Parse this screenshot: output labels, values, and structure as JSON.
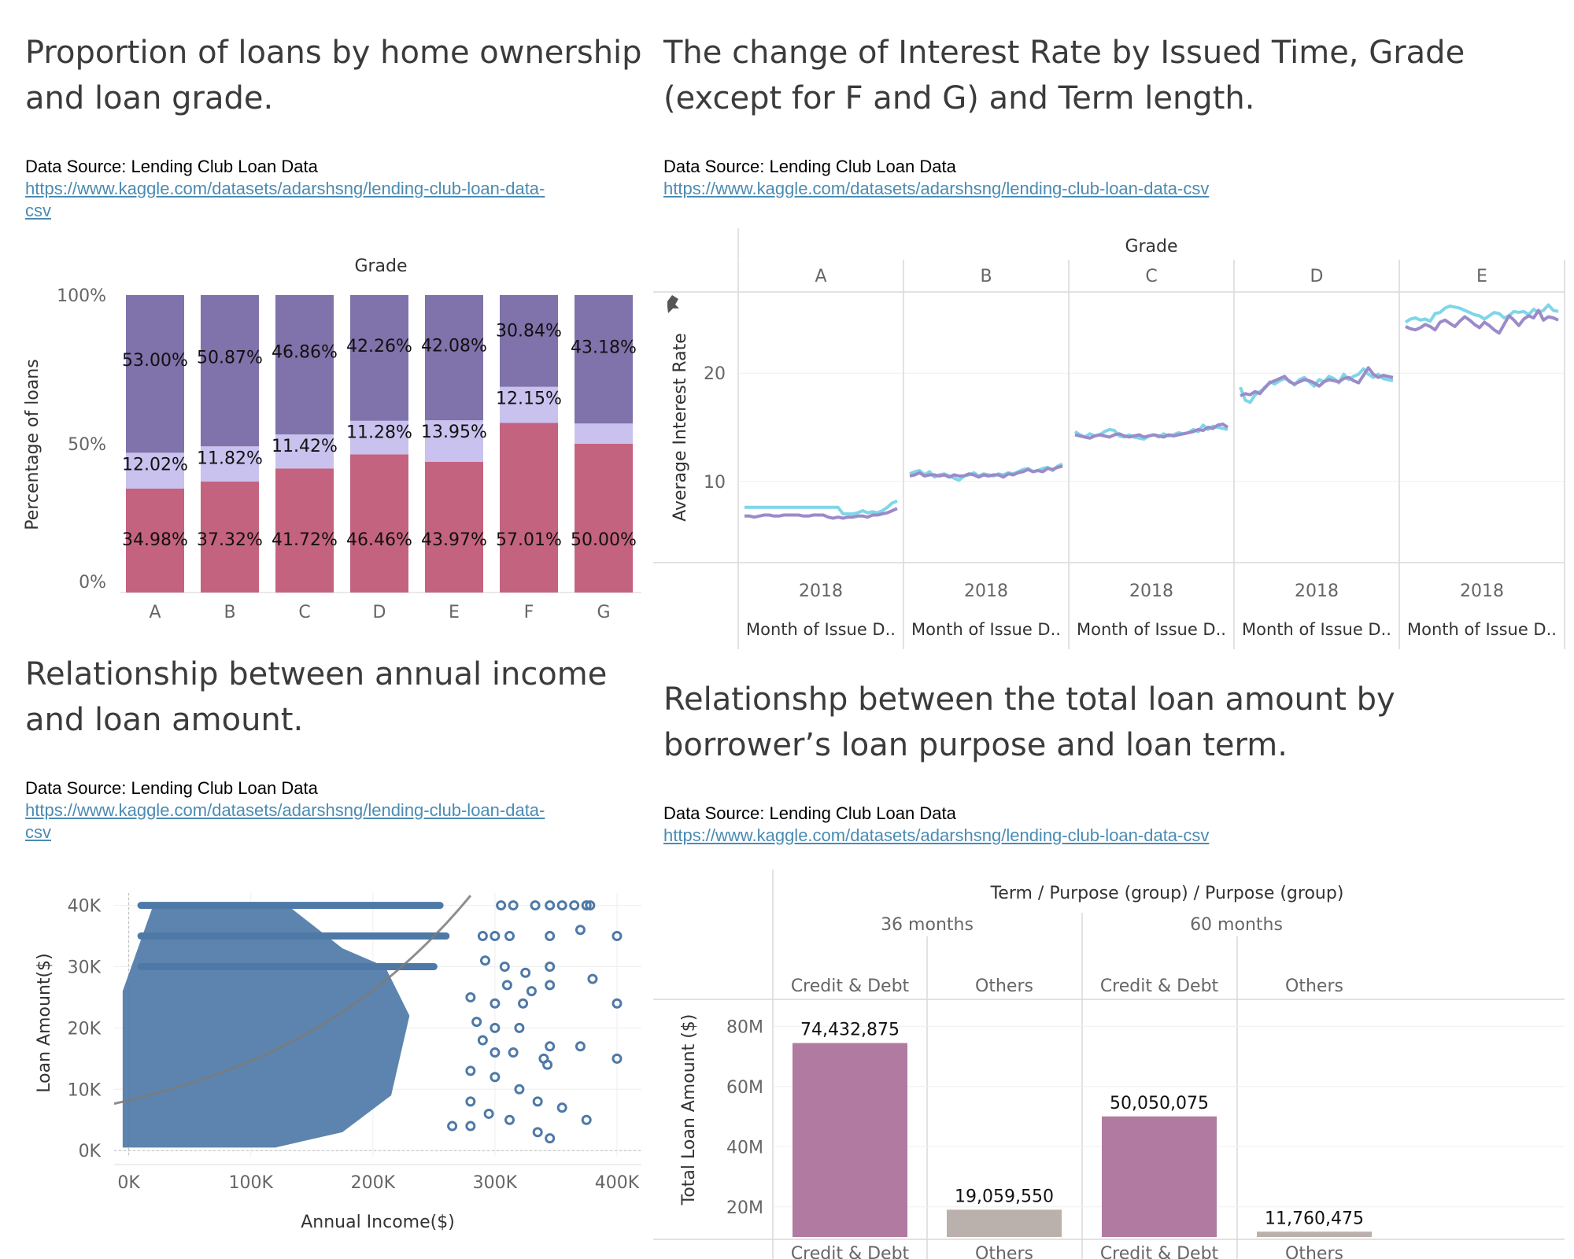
{
  "colors": {
    "mortgage": "#c4637f",
    "own": "#c9c2ee",
    "rent": "#8072aa",
    "term36": "#7fd6e8",
    "term60": "#9b8bc9",
    "scatter": "#4e79a7",
    "credit_debt": "#b07aa1",
    "others": "#bab0ac",
    "link": "#4a8bb3"
  },
  "panel1": {
    "title": "Proportion of loans by home ownership and loan grade.",
    "source": "Data Source: Lending Club Loan Data",
    "link_line1": "https://www.kaggle.com/datasets/adarshsng/lending-club-loan-data-",
    "link_line2": "csv"
  },
  "panel2": {
    "title_line1": "The change of Interest Rate by Issued Time, Grade",
    "title_line2": "(except for F and G) and Term length.",
    "source": "Data Source: Lending Club Loan Data",
    "link": "https://www.kaggle.com/datasets/adarshsng/lending-club-loan-data-csv"
  },
  "panel3": {
    "title_line1": "Relationship between annual income",
    "title_line2": "and loan amount.",
    "source": "Data Source: Lending Club Loan Data",
    "link_line1": "https://www.kaggle.com/datasets/adarshsng/lending-club-loan-data-",
    "link_line2": "csv"
  },
  "panel4": {
    "title_line1": "Relationshp between the total loan amount by",
    "title_line2": "borrower’s  loan purpose and loan term.",
    "source": "Data Source: Lending Club Loan Data",
    "link": "https://www.kaggle.com/datasets/adarshsng/lending-club-loan-data-csv"
  },
  "chart_data": [
    {
      "type": "bar",
      "stacked": "percent",
      "header": "Grade",
      "ylabel": "Percentage of loans",
      "ytick_labels": [
        "100%",
        "50%",
        "0%"
      ],
      "categories": [
        "A",
        "B",
        "C",
        "D",
        "E",
        "F",
        "G"
      ],
      "series": [
        {
          "values": [
            34.98,
            37.32,
            41.72,
            46.46,
            43.97,
            57.01,
            50.0
          ],
          "labels": [
            "34.98%",
            "37.32%",
            "41.72%",
            "46.46%",
            "43.97%",
            "57.01%",
            "50.00%"
          ]
        },
        {
          "values": [
            12.02,
            11.82,
            11.42,
            11.28,
            13.95,
            12.15,
            6.82
          ],
          "labels": [
            "12.02%",
            "11.82%",
            "11.42%",
            "11.28%",
            "13.95%",
            "12.15%",
            ""
          ]
        },
        {
          "values": [
            53.0,
            50.87,
            46.86,
            42.26,
            42.08,
            30.84,
            43.18
          ],
          "labels": [
            "53.00%",
            "50.87%",
            "46.86%",
            "42.26%",
            "42.08%",
            "30.84%",
            "43.18%"
          ]
        }
      ]
    },
    {
      "type": "line",
      "header": "Grade",
      "ylabel": "Average Interest Rate",
      "y_ticks": [
        10,
        20
      ],
      "ylim": [
        2.5,
        27.5
      ],
      "xtick_label": "2018",
      "xlabel": "Month of Issue D..",
      "panels": [
        {
          "grade": "A",
          "series": [
            {
              "values": [
                7.6,
                7.6,
                7.6,
                7.6,
                7.6,
                7.6,
                7.6,
                7.6,
                7.6,
                7.6,
                7.6,
                7.6,
                7.6,
                7.6,
                7.6,
                7.6,
                7.6,
                7.6,
                7.6,
                7.6,
                7.0,
                7.0,
                7.0,
                7.1,
                7.3,
                7.1,
                7.2,
                7.1,
                7.3,
                7.6,
                8.0,
                8.2
              ]
            },
            {
              "values": [
                6.8,
                6.8,
                6.7,
                6.8,
                6.9,
                6.9,
                6.8,
                6.8,
                6.9,
                6.9,
                6.9,
                6.9,
                6.8,
                6.8,
                6.9,
                6.9,
                6.9,
                6.7,
                6.6,
                6.7,
                6.6,
                6.7,
                6.7,
                6.8,
                6.8,
                6.7,
                6.9,
                6.9,
                7.0,
                7.1,
                7.3,
                7.5
              ]
            }
          ]
        },
        {
          "grade": "B",
          "series": [
            {
              "values": [
                10.7,
                10.9,
                11.0,
                10.6,
                10.9,
                10.4,
                10.6,
                10.7,
                10.5,
                10.3,
                10.1,
                10.5,
                10.6,
                10.8,
                10.5,
                10.7,
                10.6,
                10.5,
                10.7,
                10.6,
                10.8,
                10.7,
                10.9,
                11.1,
                11.2,
                10.9,
                11.0,
                11.2,
                11.3,
                11.0,
                11.4,
                11.6
              ]
            },
            {
              "values": [
                10.5,
                10.6,
                10.8,
                10.5,
                10.6,
                10.6,
                10.5,
                10.6,
                10.4,
                10.6,
                10.5,
                10.5,
                10.7,
                10.6,
                10.4,
                10.6,
                10.5,
                10.6,
                10.6,
                10.4,
                10.7,
                10.6,
                10.8,
                10.9,
                11.1,
                10.9,
                11.0,
                10.9,
                11.2,
                11.1,
                11.3,
                11.4
              ]
            }
          ]
        },
        {
          "grade": "C",
          "series": [
            {
              "values": [
                14.6,
                14.3,
                14.1,
                14.4,
                14.2,
                14.3,
                14.6,
                14.8,
                14.7,
                14.2,
                14.1,
                14.3,
                14.1,
                14.0,
                13.9,
                14.2,
                14.3,
                14.1,
                14.4,
                14.2,
                14.3,
                14.5,
                14.4,
                14.5,
                14.8,
                14.6,
                15.2,
                14.8,
                15.1,
                15.0,
                14.9,
                14.8
              ]
            },
            {
              "values": [
                14.3,
                14.2,
                14.1,
                14.0,
                14.2,
                14.3,
                14.2,
                14.1,
                14.3,
                14.4,
                14.2,
                14.1,
                14.2,
                14.3,
                14.1,
                14.2,
                14.3,
                14.2,
                14.1,
                14.3,
                14.2,
                14.3,
                14.4,
                14.5,
                14.6,
                14.8,
                14.7,
                15.0,
                14.9,
                15.2,
                15.3,
                15.0
              ]
            }
          ]
        },
        {
          "grade": "D",
          "series": [
            {
              "values": [
                18.7,
                17.5,
                17.3,
                18.0,
                18.3,
                18.6,
                19.2,
                19.0,
                19.3,
                19.5,
                19.3,
                18.9,
                19.4,
                19.6,
                19.2,
                18.8,
                19.4,
                19.2,
                19.7,
                19.5,
                19.1,
                19.9,
                19.4,
                19.7,
                19.9,
                20.4,
                19.9,
                19.6,
                19.9,
                19.5,
                19.4,
                19.3
              ]
            },
            {
              "values": [
                17.9,
                18.1,
                18.0,
                18.3,
                18.1,
                18.7,
                19.1,
                19.3,
                19.5,
                19.7,
                19.2,
                19.0,
                19.2,
                19.4,
                19.3,
                19.1,
                18.8,
                19.2,
                19.4,
                19.3,
                19.2,
                19.5,
                19.6,
                19.3,
                19.1,
                19.8,
                20.5,
                19.9,
                19.6,
                19.8,
                19.7,
                19.6
              ]
            }
          ]
        },
        {
          "grade": "E",
          "series": [
            {
              "values": [
                24.7,
                25.0,
                25.1,
                24.9,
                25.0,
                24.8,
                25.5,
                25.6,
                26.0,
                26.2,
                26.1,
                26.0,
                25.8,
                25.6,
                25.4,
                25.3,
                25.0,
                25.3,
                25.6,
                25.5,
                25.1,
                25.3,
                25.7,
                25.6,
                25.7,
                25.4,
                25.9,
                25.6,
                25.8,
                26.3,
                25.8,
                25.7
              ]
            },
            {
              "values": [
                24.3,
                24.1,
                24.0,
                24.2,
                24.5,
                24.3,
                24.0,
                24.7,
                24.9,
                24.6,
                24.3,
                24.8,
                25.2,
                24.9,
                24.5,
                24.2,
                24.7,
                24.4,
                24.0,
                23.7,
                24.5,
                25.3,
                24.9,
                24.4,
                25.0,
                25.3,
                25.1,
                25.8,
                24.9,
                25.2,
                25.1,
                24.9
              ]
            }
          ]
        }
      ]
    },
    {
      "type": "scatter",
      "xlabel": "Annual Income($)",
      "ylabel": "Loan Amount($)",
      "x_ticks": [
        0,
        100000,
        200000,
        300000,
        400000
      ],
      "x_tick_labels": [
        "0K",
        "100K",
        "200K",
        "300K",
        "400K"
      ],
      "xlim": [
        -12000,
        420000
      ],
      "y_ticks": [
        0,
        10000,
        20000,
        30000,
        40000
      ],
      "y_tick_labels": [
        "0K",
        "10K",
        "20K",
        "30K",
        "40K"
      ],
      "ylim": [
        -1000,
        42000
      ],
      "trend": {
        "type": "exponential",
        "a": 8200,
        "b": 5.8e-06
      },
      "points": [
        {
          "x": 305000,
          "y": 40000
        },
        {
          "x": 315000,
          "y": 40000
        },
        {
          "x": 333000,
          "y": 40000
        },
        {
          "x": 345000,
          "y": 40000
        },
        {
          "x": 355000,
          "y": 40000
        },
        {
          "x": 365000,
          "y": 40000
        },
        {
          "x": 375000,
          "y": 40000
        },
        {
          "x": 378000,
          "y": 40000
        },
        {
          "x": 290000,
          "y": 35000
        },
        {
          "x": 300000,
          "y": 35000
        },
        {
          "x": 312000,
          "y": 35000
        },
        {
          "x": 345000,
          "y": 35000
        },
        {
          "x": 370000,
          "y": 36000
        },
        {
          "x": 400000,
          "y": 35000
        },
        {
          "x": 292000,
          "y": 31000
        },
        {
          "x": 308000,
          "y": 30000
        },
        {
          "x": 325000,
          "y": 29000
        },
        {
          "x": 310000,
          "y": 27000
        },
        {
          "x": 345000,
          "y": 30000
        },
        {
          "x": 330000,
          "y": 26000
        },
        {
          "x": 345000,
          "y": 27000
        },
        {
          "x": 380000,
          "y": 28000
        },
        {
          "x": 280000,
          "y": 25000
        },
        {
          "x": 300000,
          "y": 24000
        },
        {
          "x": 323000,
          "y": 24000
        },
        {
          "x": 400000,
          "y": 24000
        },
        {
          "x": 285000,
          "y": 21000
        },
        {
          "x": 300000,
          "y": 20000
        },
        {
          "x": 320000,
          "y": 20000
        },
        {
          "x": 290000,
          "y": 18000
        },
        {
          "x": 300000,
          "y": 16000
        },
        {
          "x": 315000,
          "y": 16000
        },
        {
          "x": 340000,
          "y": 15000
        },
        {
          "x": 345000,
          "y": 17000
        },
        {
          "x": 370000,
          "y": 17000
        },
        {
          "x": 400000,
          "y": 15000
        },
        {
          "x": 280000,
          "y": 13000
        },
        {
          "x": 300000,
          "y": 12000
        },
        {
          "x": 320000,
          "y": 10000
        },
        {
          "x": 343000,
          "y": 14000
        },
        {
          "x": 280000,
          "y": 8000
        },
        {
          "x": 295000,
          "y": 6000
        },
        {
          "x": 312000,
          "y": 5000
        },
        {
          "x": 335000,
          "y": 8000
        },
        {
          "x": 355000,
          "y": 7000
        },
        {
          "x": 375000,
          "y": 5000
        },
        {
          "x": 265000,
          "y": 4000
        },
        {
          "x": 280000,
          "y": 4000
        },
        {
          "x": 335000,
          "y": 3000
        },
        {
          "x": 345000,
          "y": 2000
        }
      ]
    },
    {
      "type": "bar",
      "header": "Term / Purpose (group) / Purpose (group)",
      "ylabel": "Total Loan Amount ($)",
      "y_ticks": [
        20000000,
        40000000,
        60000000,
        80000000
      ],
      "y_tick_labels": [
        "20M",
        "40M",
        "60M",
        "80M"
      ],
      "ylim": [
        10000000,
        90000000
      ],
      "groups": [
        {
          "term": "36 months",
          "bars": [
            {
              "purpose": "Credit & Debt",
              "value": 74432875,
              "label": "74,432,875"
            },
            {
              "purpose": "Others",
              "value": 19059550,
              "label": "19,059,550"
            }
          ]
        },
        {
          "term": "60 months",
          "bars": [
            {
              "purpose": "Credit & Debt",
              "value": 50050075,
              "label": "50,050,075"
            },
            {
              "purpose": "Others",
              "value": 11760475,
              "label": "11,760,475"
            }
          ]
        }
      ]
    }
  ]
}
